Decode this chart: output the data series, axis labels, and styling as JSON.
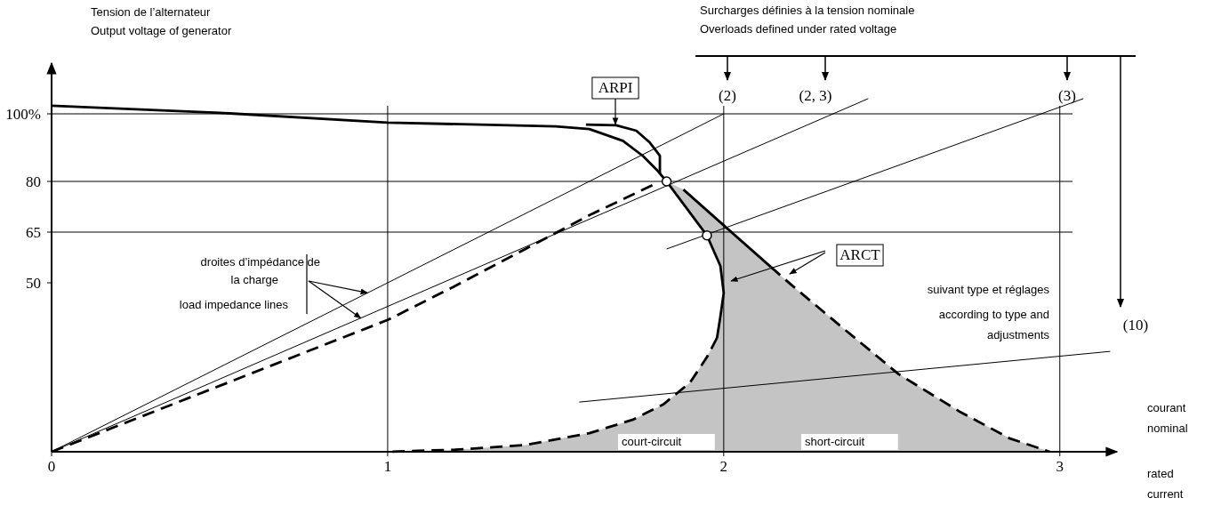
{
  "chart_data": {
    "type": "line",
    "xlabel": "courant\nnominal\nrated\ncurrent",
    "ylabel": "Tension de l’alternateur\nOutput voltage of generator",
    "xlim": [
      0,
      3.17
    ],
    "ylim": [
      0,
      115
    ],
    "xticks": [
      0,
      1,
      2,
      3
    ],
    "yticks": [
      50,
      65,
      80,
      {
        "value": 100,
        "label": "100%"
      }
    ],
    "series": [
      {
        "color": "#000000",
        "line_style": "solid",
        "x": [
          0,
          0.5,
          1,
          1.5,
          1.6,
          1.7,
          1.76,
          1.8,
          1.83,
          1.89,
          1.95,
          1.99,
          2.0,
          1.99,
          1.98
        ],
        "values": [
          102.4,
          100.3,
          97.4,
          96.3,
          95.5,
          92,
          87.5,
          83.5,
          80,
          72,
          64,
          55,
          47,
          40,
          33.7
        ]
      },
      {
        "color": "#000000",
        "line_style": "dashed",
        "x": [
          1.98,
          1.95,
          1.9,
          1.82,
          1.73,
          1.6,
          1.41,
          1.2,
          1.0
        ],
        "values": [
          33.7,
          28,
          20.5,
          14,
          9.5,
          5.5,
          2,
          0.6,
          0
        ]
      },
      {
        "color": "#000000",
        "line_style": "solid",
        "x": [
          1.88,
          2,
          2.14
        ],
        "values": [
          77.6,
          67,
          54.7
        ]
      },
      {
        "color": "#000000",
        "line_style": "dashed",
        "x": [
          2.14,
          2.2,
          2.35,
          2.52,
          2.7,
          2.85,
          2.97
        ],
        "values": [
          54.7,
          49.5,
          37,
          23,
          12,
          4,
          0
        ]
      },
      {
        "color": "#000000",
        "line_style": "solid",
        "x": [
          1.59,
          1.68,
          1.74,
          1.78,
          1.81,
          1.81
        ],
        "values": [
          96.8,
          96.6,
          95,
          91.5,
          87.6,
          82.4
        ]
      },
      {
        "color": "#000000",
        "line_style": "dashed",
        "x": [
          0,
          0.5,
          1,
          1.2,
          1.41,
          1.6,
          1.79
        ],
        "values": [
          0,
          19.5,
          39,
          49,
          60,
          70,
          79
        ]
      },
      {
        "color": "#000000",
        "line_style": "solid",
        "x": [
          0,
          2
        ],
        "values": [
          0,
          100
        ]
      },
      {
        "color": "#000000",
        "line_style": "solid",
        "x": [
          0,
          2.43
        ],
        "values": [
          0,
          104.5
        ]
      },
      {
        "color": "#000000",
        "line_style": "solid",
        "x": [
          1.83,
          3.07
        ],
        "values": [
          60,
          104.5
        ]
      },
      {
        "color": "#000000",
        "line_style": "solid",
        "x": [
          1.57,
          3.15
        ],
        "values": [
          14.7,
          29.7
        ]
      },
      {
        "type": "scatter",
        "color": "#000000",
        "marker": "circle",
        "x": [
          1.83,
          1.95
        ],
        "values": [
          80,
          64
        ]
      }
    ],
    "ref_lines": [
      {
        "axis": "y",
        "value": 100
      },
      {
        "axis": "y",
        "value": 80
      },
      {
        "axis": "y",
        "value": 65
      },
      {
        "axis": "x",
        "value": 1
      },
      {
        "axis": "x",
        "value": 2
      },
      {
        "axis": "x",
        "value": 3
      }
    ],
    "annotations": [
      "Surcharges définies à la tension nominale",
      "Overloads defined under rated voltage",
      "(2)",
      "(2, 3)",
      "(3)",
      "(10)",
      "ARPI",
      "ARCT",
      {
        "text": "droites d’impédance de",
        "x": 0.94,
        "y": 47
      },
      "la charge",
      "load impedance lines",
      "suivant type et réglages",
      "according to type and",
      "adjustments",
      "court-circuit",
      "short-circuit"
    ]
  }
}
